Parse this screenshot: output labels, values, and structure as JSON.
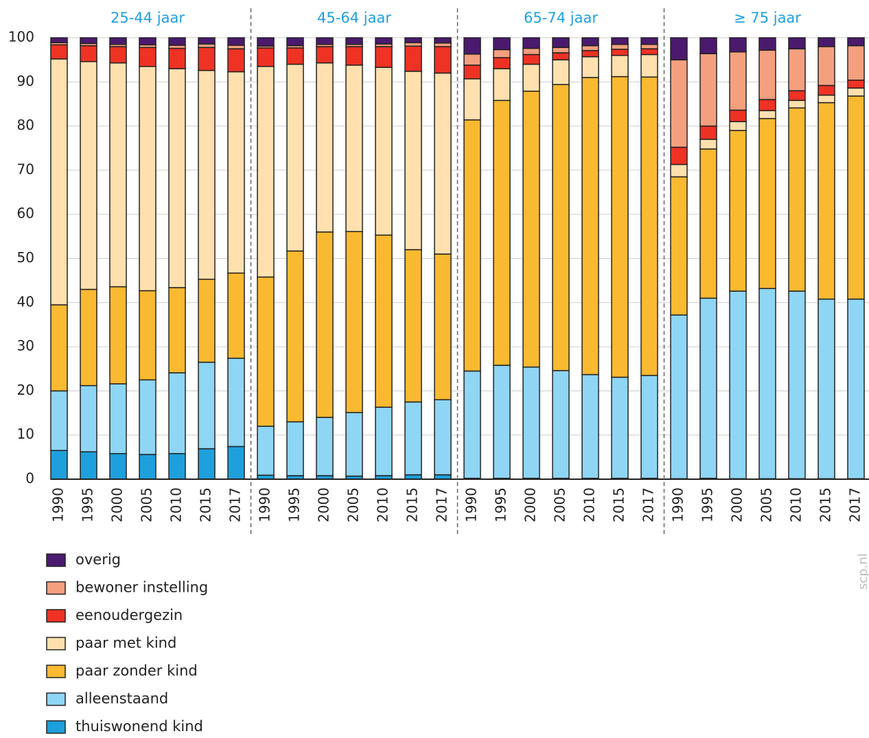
{
  "chart_data": {
    "type": "stacked_bar",
    "groups": [
      "25-44 jaar",
      "45-64 jaar",
      "65-74 jaar",
      "≥ 75 jaar"
    ],
    "categories": [
      "1990",
      "1995",
      "2000",
      "2005",
      "2010",
      "2015",
      "2017",
      "1990",
      "1995",
      "2000",
      "2005",
      "2010",
      "2015",
      "2017",
      "1990",
      "1995",
      "2000",
      "2005",
      "2010",
      "2015",
      "2017",
      "1990",
      "1995",
      "2000",
      "2005",
      "2010",
      "2015",
      "2017"
    ],
    "ylim": [
      0,
      100
    ],
    "yticks": [
      0,
      10,
      20,
      30,
      40,
      50,
      60,
      70,
      80,
      90,
      100
    ],
    "grid": true,
    "source": "scp.nl",
    "series": [
      {
        "name": "thuiswonend kind",
        "color": "#1ea0dc",
        "values": [
          6.5,
          6.2,
          5.8,
          5.6,
          5.8,
          6.9,
          7.4,
          0.9,
          0.8,
          0.8,
          0.7,
          0.8,
          1,
          1,
          0.2,
          0.2,
          0.2,
          0.2,
          0.2,
          0.2,
          0.2,
          0.1,
          0.2,
          0.1,
          0.1,
          0.1,
          0.1,
          0.1
        ]
      },
      {
        "name": "alleenstaand",
        "color": "#8fd5f4",
        "values": [
          13.5,
          15,
          15.8,
          16.9,
          18.3,
          19.6,
          20,
          11.1,
          12.2,
          13.2,
          14.4,
          15.5,
          16.5,
          17,
          24.3,
          25.6,
          25.2,
          24.4,
          23.5,
          22.9,
          23.3,
          37.1,
          40.8,
          42.5,
          43.1,
          42.5,
          40.7,
          40.7
        ]
      },
      {
        "name": "paar zonder kind",
        "color": "#f9b931",
        "values": [
          19.5,
          21.8,
          22,
          20.2,
          19.3,
          18.8,
          19.3,
          33.8,
          38.7,
          42,
          41,
          39,
          34.5,
          33,
          56.9,
          60,
          62.5,
          64.8,
          67.3,
          68.1,
          67.6,
          31.3,
          33.8,
          36.4,
          38.5,
          41.5,
          44.5,
          46
        ]
      },
      {
        "name": "paar met kind",
        "color": "#ffe0ae",
        "values": [
          55.7,
          51.6,
          50.7,
          50.8,
          49.6,
          47.3,
          45.6,
          47.7,
          42.3,
          38.3,
          37.7,
          38,
          40.4,
          41,
          9.3,
          7.2,
          6.1,
          5.6,
          4.7,
          4.8,
          5.1,
          2.8,
          2.2,
          2,
          1.8,
          1.7,
          1.7,
          1.8
        ]
      },
      {
        "name": "eenoudergezin",
        "color": "#ee3224",
        "values": [
          3.2,
          3.6,
          3.7,
          4.3,
          4.6,
          5.2,
          5.2,
          4.2,
          3.7,
          3.7,
          4.2,
          4.7,
          5.7,
          6,
          3.1,
          2.5,
          2.2,
          1.6,
          1.4,
          1.4,
          1.3,
          3.9,
          3,
          2.6,
          2.5,
          2.2,
          2.2,
          1.8
        ]
      },
      {
        "name": "bewoner instelling",
        "color": "#f4a07f",
        "values": [
          0.5,
          0.5,
          0.5,
          0.6,
          0.7,
          0.8,
          0.8,
          0.4,
          0.5,
          0.5,
          0.5,
          0.6,
          0.8,
          0.8,
          2.5,
          1.8,
          1.4,
          1.2,
          1.1,
          1.1,
          1,
          19.8,
          16.4,
          13.2,
          11.2,
          9.5,
          8.8,
          7.8
        ]
      },
      {
        "name": "overig",
        "color": "#4b1a6e",
        "values": [
          1.1,
          1.3,
          1.5,
          1.6,
          1.7,
          1.4,
          1.7,
          1.9,
          1.8,
          1.5,
          1.5,
          1.4,
          1.1,
          1.2,
          3.7,
          2.7,
          2.4,
          2.2,
          1.8,
          1.5,
          1.5,
          5,
          3.6,
          3.2,
          2.8,
          2.5,
          2,
          1.8
        ]
      }
    ]
  }
}
